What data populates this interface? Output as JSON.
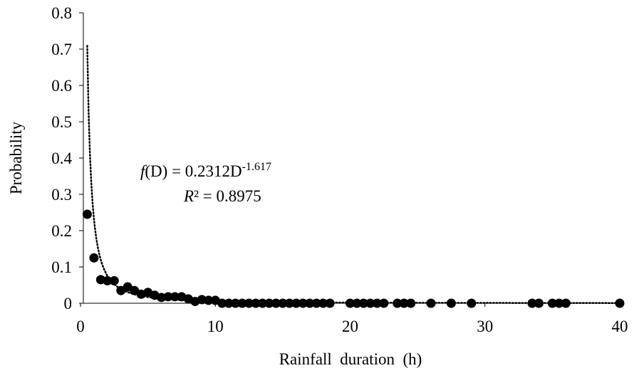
{
  "chart_data": {
    "type": "scatter",
    "x_label": "Rainfall  duration  (h)",
    "y_label": "Probability",
    "xlim": [
      0,
      40
    ],
    "xticks": [
      0,
      10,
      20,
      30,
      40
    ],
    "ylim": [
      0,
      0.8
    ],
    "yticks": [
      0,
      0.1,
      0.2,
      0.3,
      0.4,
      0.5,
      0.6,
      0.7,
      0.8
    ],
    "grid": false,
    "color": "#000000",
    "x": [
      0.5,
      1,
      1.5,
      2,
      2.5,
      3,
      3.5,
      4,
      4.5,
      5,
      5.5,
      6,
      6.5,
      7,
      7.5,
      8,
      8.5,
      9,
      9.5,
      10,
      10.5,
      11,
      11.5,
      12,
      12.5,
      13,
      13.5,
      14,
      14.5,
      15,
      15.5,
      16,
      16.5,
      17,
      17.5,
      18,
      18.5,
      20,
      20.5,
      21,
      21.5,
      22,
      22.5,
      23.5,
      24,
      24.5,
      26,
      27.5,
      29,
      33.5,
      34,
      35,
      35.5,
      36,
      40
    ],
    "values": [
      0.245,
      0.125,
      0.065,
      0.062,
      0.062,
      0.035,
      0.045,
      0.035,
      0.025,
      0.03,
      0.022,
      0.016,
      0.018,
      0.018,
      0.018,
      0.012,
      0.005,
      0.01,
      0.008,
      0.008,
      0,
      0,
      0,
      0,
      0,
      0,
      0,
      0,
      0,
      0,
      0,
      0,
      0,
      0,
      0,
      0,
      0,
      0,
      0,
      0,
      0,
      0,
      0,
      0,
      0,
      0,
      0,
      0,
      0,
      0,
      0,
      0,
      0,
      0,
      0
    ],
    "trendline": {
      "type": "power",
      "coefficient": 0.2312,
      "exponent": -1.617,
      "style": "dotted",
      "color": "#000000"
    },
    "equation_text": {
      "function": "f",
      "argument": "(D) = ",
      "variable": "D"
    },
    "r2_text": {
      "symbol": "R",
      "superscript": "²",
      "equals": " = "
    },
    "r_squared": 0.8975
  }
}
